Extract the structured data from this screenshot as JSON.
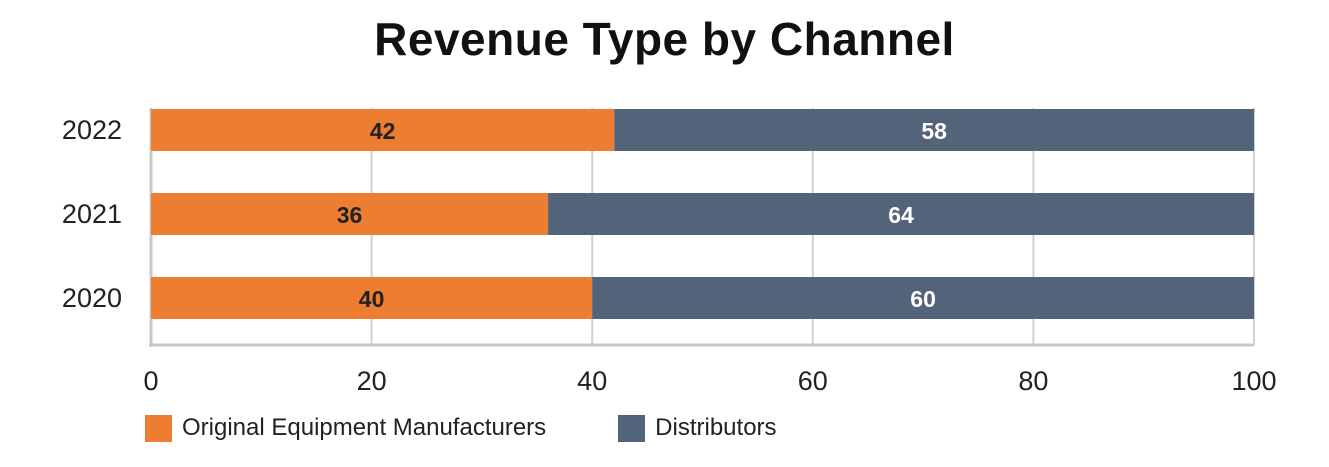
{
  "chart_data": {
    "type": "bar",
    "orientation": "horizontal",
    "stacked": true,
    "title": "Revenue Type by Channel",
    "categories": [
      "2022",
      "2021",
      "2020"
    ],
    "series": [
      {
        "name": "Original Equipment Manufacturers",
        "values": [
          42,
          36,
          40
        ],
        "color": "#ED7D31",
        "label_color": "#222222"
      },
      {
        "name": "Distributors",
        "values": [
          58,
          64,
          60
        ],
        "color": "#536379",
        "label_color": "#ffffff"
      }
    ],
    "xlim": [
      0,
      100
    ],
    "xticks": [
      "0",
      "20",
      "40",
      "60",
      "80",
      "100"
    ],
    "xlabel": "",
    "ylabel": "",
    "grid": true,
    "legend_position": "bottom-left"
  }
}
